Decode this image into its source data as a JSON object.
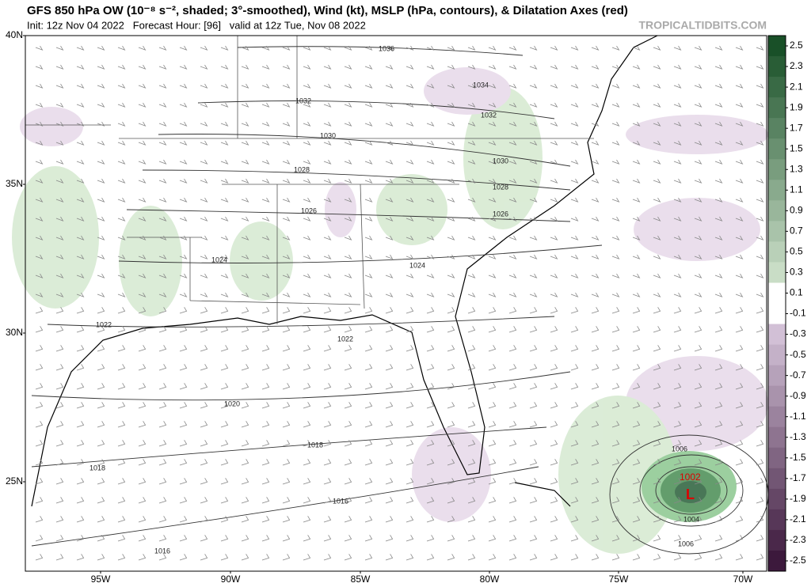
{
  "header": {
    "title": "GFS 850 hPa OW (10⁻⁸ s⁻², shaded; 3°-smoothed), Wind (kt), MSLP (hPa, contours), & Dilatation Axes (red)",
    "init_line": "Init: 12z Nov 04 2022   Forecast Hour: [96]   valid at 12z Tue, Nov 08 2022",
    "credit": "TROPICALTIDBITS.COM"
  },
  "map": {
    "lat_labels": [
      "40N",
      "35N",
      "30N",
      "25N"
    ],
    "lon_labels": [
      "95W",
      "90W",
      "85W",
      "80W",
      "75W",
      "70W"
    ],
    "contour_labels": [
      "1036",
      "1034",
      "1032",
      "1032",
      "1030",
      "1030",
      "1028",
      "1028",
      "1026",
      "1026",
      "1024",
      "1024",
      "1022",
      "1022",
      "1020",
      "1018",
      "1018",
      "1016",
      "1016",
      "1006",
      "1002",
      "1004",
      "1006"
    ],
    "low_label": "L"
  },
  "colorbar": {
    "ticks": [
      2.5,
      2.3,
      2.1,
      1.9,
      1.7,
      1.5,
      1.3,
      1.1,
      0.9,
      0.7,
      0.5,
      0.3,
      0.1,
      -0.1,
      -0.3,
      -0.5,
      -0.7,
      -0.9,
      -1.1,
      -1.3,
      -1.5,
      -1.7,
      -1.9,
      -2.1,
      -2.3,
      -2.5
    ]
  }
}
